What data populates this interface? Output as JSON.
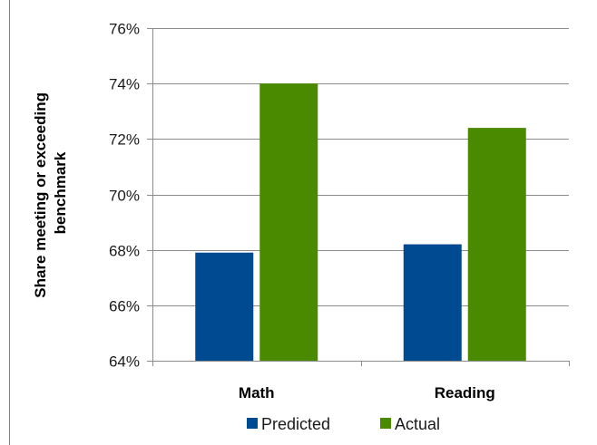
{
  "chart_data": {
    "type": "bar",
    "title": "",
    "xlabel": "",
    "ylabel_lines": [
      "Share meeting or exceeding",
      "benchmark"
    ],
    "categories": [
      "Math",
      "Reading"
    ],
    "series": [
      {
        "name": "Predicted",
        "color": "#004a91",
        "values": [
          67.9,
          68.2
        ]
      },
      {
        "name": "Actual",
        "color": "#4a8a00",
        "values": [
          74.0,
          72.4
        ]
      }
    ],
    "ylim": [
      64,
      76
    ],
    "yticks": [
      64,
      66,
      68,
      70,
      72,
      74,
      76
    ],
    "ytick_labels": [
      "64%",
      "66%",
      "68%",
      "70%",
      "72%",
      "74%",
      "76%"
    ],
    "grid": true,
    "legend_position": "bottom"
  }
}
